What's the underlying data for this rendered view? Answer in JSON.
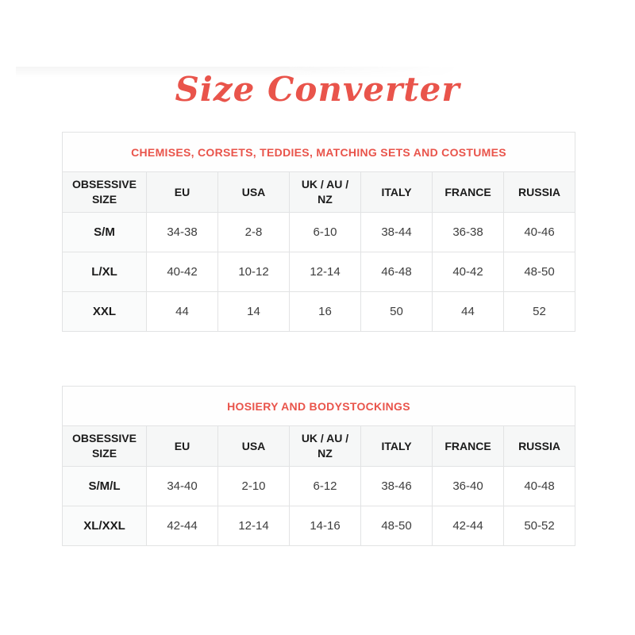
{
  "page": {
    "title": "Size Converter"
  },
  "colors": {
    "accent": "#e9544b",
    "border": "#e2e3e4",
    "header_bg": "#f6f7f7",
    "text": "#3d3d3d"
  },
  "tables": [
    {
      "caption": "CHEMISES, CORSETS, TEDDIES, MATCHING SETS AND COSTUMES",
      "columns": [
        "OBSESSIVE SIZE",
        "EU",
        "USA",
        "UK / AU / NZ",
        "ITALY",
        "FRANCE",
        "RUSSIA"
      ],
      "rows": [
        [
          "S/M",
          "34-38",
          "2-8",
          "6-10",
          "38-44",
          "36-38",
          "40-46"
        ],
        [
          "L/XL",
          "40-42",
          "10-12",
          "12-14",
          "46-48",
          "40-42",
          "48-50"
        ],
        [
          "XXL",
          "44",
          "14",
          "16",
          "50",
          "44",
          "52"
        ]
      ]
    },
    {
      "caption": "HOSIERY AND BODYSTOCKINGS",
      "columns": [
        "OBSESSIVE SIZE",
        "EU",
        "USA",
        "UK / AU / NZ",
        "ITALY",
        "FRANCE",
        "RUSSIA"
      ],
      "rows": [
        [
          "S/M/L",
          "34-40",
          "2-10",
          "6-12",
          "38-46",
          "36-40",
          "40-48"
        ],
        [
          "XL/XXL",
          "42-44",
          "12-14",
          "14-16",
          "48-50",
          "42-44",
          "50-52"
        ]
      ]
    }
  ]
}
